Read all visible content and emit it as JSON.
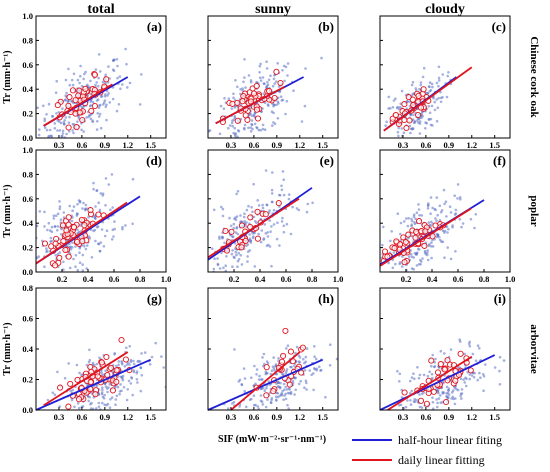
{
  "col_titles": [
    "total",
    "sunny",
    "cloudy"
  ],
  "row_labels": [
    "Chinese cork oak",
    "poplar",
    "arborvitae"
  ],
  "ylabel": "Tr (mm·h⁻¹)",
  "xlabel": "SIF (mW·m⁻²·sr⁻¹·nm⁻¹)",
  "legend": [
    {
      "label": "half-hour  linear fiting",
      "color": "#1f1fd6"
    },
    {
      "label": "daily linear fitting",
      "color": "#e0141e"
    }
  ],
  "colors": {
    "scatter_half_hour": "#5a6fc4",
    "scatter_daily": "#e0141e",
    "fit_half_hour": "#1f1fd6",
    "fit_daily": "#e0141e"
  },
  "chart_data": [
    {
      "type": "scatter",
      "panel": "(a)",
      "row": 0,
      "col": 0,
      "xlim": [
        0,
        1.7
      ],
      "ylim": [
        0,
        1.0
      ],
      "xticks": [
        "0.3",
        "0.6",
        "0.9",
        "1.2",
        "1.5"
      ],
      "yticks": [
        "0.0",
        "0.2",
        "0.4",
        "0.6",
        "0.8",
        "1.0"
      ],
      "half_hour_cloud": {
        "center": [
          0.6,
          0.28
        ],
        "spread": [
          0.28,
          0.14
        ],
        "slope": 0.36,
        "n": 260
      },
      "daily_cloud": {
        "center": [
          0.6,
          0.3
        ],
        "spread": [
          0.18,
          0.07
        ],
        "slope": 0.38,
        "n": 45
      },
      "fit_half_hour": [
        [
          0.1,
          0.1
        ],
        [
          1.2,
          0.5
        ]
      ],
      "fit_daily": [
        [
          0.1,
          0.1
        ],
        [
          1.0,
          0.44
        ]
      ]
    },
    {
      "type": "scatter",
      "panel": "(b)",
      "row": 0,
      "col": 1,
      "xlim": [
        0,
        1.7
      ],
      "ylim": [
        0,
        1.0
      ],
      "xticks": [
        "0.3",
        "0.6",
        "0.9",
        "1.2",
        "1.5"
      ],
      "yticks": [],
      "half_hour_cloud": {
        "center": [
          0.6,
          0.26
        ],
        "spread": [
          0.28,
          0.13
        ],
        "slope": 0.33,
        "n": 250
      },
      "daily_cloud": {
        "center": [
          0.55,
          0.28
        ],
        "spread": [
          0.17,
          0.07
        ],
        "slope": 0.35,
        "n": 45
      },
      "fit_half_hour": [
        [
          0.1,
          0.12
        ],
        [
          1.25,
          0.5
        ]
      ],
      "fit_daily": [
        [
          0.1,
          0.12
        ],
        [
          1.0,
          0.42
        ]
      ]
    },
    {
      "type": "scatter",
      "panel": "(c)",
      "row": 0,
      "col": 2,
      "xlim": [
        0,
        1.7
      ],
      "ylim": [
        0,
        1.0
      ],
      "xticks": [
        "0.3",
        "0.6",
        "0.9",
        "1.2",
        "1.5"
      ],
      "yticks": [],
      "half_hour_cloud": {
        "center": [
          0.45,
          0.24
        ],
        "spread": [
          0.2,
          0.12
        ],
        "slope": 0.4,
        "n": 200
      },
      "daily_cloud": {
        "center": [
          0.4,
          0.24
        ],
        "spread": [
          0.12,
          0.06
        ],
        "slope": 0.45,
        "n": 35
      },
      "fit_half_hour": [
        [
          0.05,
          0.06
        ],
        [
          1.0,
          0.5
        ]
      ],
      "fit_daily": [
        [
          0.05,
          0.06
        ],
        [
          1.2,
          0.58
        ]
      ]
    },
    {
      "type": "scatter",
      "panel": "(d)",
      "row": 1,
      "col": 0,
      "xlim": [
        0,
        1.0
      ],
      "ylim": [
        0,
        1.0
      ],
      "xticks": [
        "0.2",
        "0.4",
        "0.6",
        "0.8",
        "1.0"
      ],
      "yticks": [
        "0.0",
        "0.2",
        "0.4",
        "0.6",
        "0.8",
        "1.0"
      ],
      "half_hour_cloud": {
        "center": [
          0.3,
          0.3
        ],
        "spread": [
          0.17,
          0.16
        ],
        "slope": 0.6,
        "n": 260
      },
      "daily_cloud": {
        "center": [
          0.28,
          0.3
        ],
        "spread": [
          0.12,
          0.07
        ],
        "slope": 0.7,
        "n": 55
      },
      "fit_half_hour": [
        [
          0.0,
          0.07
        ],
        [
          0.8,
          0.62
        ]
      ],
      "fit_daily": [
        [
          0.0,
          0.07
        ],
        [
          0.7,
          0.57
        ]
      ]
    },
    {
      "type": "scatter",
      "panel": "(e)",
      "row": 1,
      "col": 1,
      "xlim": [
        0,
        1.0
      ],
      "ylim": [
        0,
        1.0
      ],
      "xticks": [
        "0.2",
        "0.4",
        "0.6",
        "0.8",
        "1.0"
      ],
      "yticks": [],
      "half_hour_cloud": {
        "center": [
          0.3,
          0.3
        ],
        "spread": [
          0.17,
          0.15
        ],
        "slope": 0.65,
        "n": 240
      },
      "daily_cloud": {
        "center": [
          0.28,
          0.32
        ],
        "spread": [
          0.12,
          0.07
        ],
        "slope": 0.7,
        "n": 25
      },
      "fit_half_hour": [
        [
          0.0,
          0.1
        ],
        [
          0.8,
          0.69
        ]
      ],
      "fit_daily": [
        [
          0.0,
          0.12
        ],
        [
          0.7,
          0.6
        ]
      ]
    },
    {
      "type": "scatter",
      "panel": "(f)",
      "row": 1,
      "col": 2,
      "xlim": [
        0,
        1.0
      ],
      "ylim": [
        0,
        1.0
      ],
      "xticks": [
        "0.2",
        "0.4",
        "0.6",
        "0.8",
        "1.0"
      ],
      "yticks": [],
      "half_hour_cloud": {
        "center": [
          0.28,
          0.26
        ],
        "spread": [
          0.16,
          0.14
        ],
        "slope": 0.55,
        "n": 240
      },
      "daily_cloud": {
        "center": [
          0.25,
          0.26
        ],
        "spread": [
          0.12,
          0.06
        ],
        "slope": 0.6,
        "n": 50
      },
      "fit_half_hour": [
        [
          0.0,
          0.06
        ],
        [
          0.8,
          0.59
        ]
      ],
      "fit_daily": [
        [
          0.0,
          0.05
        ],
        [
          0.7,
          0.52
        ]
      ]
    },
    {
      "type": "scatter",
      "panel": "(g)",
      "row": 2,
      "col": 0,
      "xlim": [
        0,
        1.7
      ],
      "ylim": [
        0,
        0.8
      ],
      "xticks": [
        "0.3",
        "0.6",
        "0.9",
        "1.2",
        "1.5"
      ],
      "yticks": [
        "0.0",
        "0.2",
        "0.4",
        "0.6",
        "0.8"
      ],
      "half_hour_cloud": {
        "center": [
          0.85,
          0.18
        ],
        "spread": [
          0.3,
          0.1
        ],
        "slope": 0.22,
        "n": 280
      },
      "daily_cloud": {
        "center": [
          0.8,
          0.2
        ],
        "spread": [
          0.2,
          0.06
        ],
        "slope": 0.3,
        "n": 55
      },
      "fit_half_hour": [
        [
          0.0,
          0.0
        ],
        [
          1.5,
          0.33
        ]
      ],
      "fit_daily": [
        [
          0.1,
          0.03
        ],
        [
          1.2,
          0.38
        ]
      ]
    },
    {
      "type": "scatter",
      "panel": "(h)",
      "row": 2,
      "col": 1,
      "xlim": [
        0,
        1.7
      ],
      "ylim": [
        0,
        0.8
      ],
      "xticks": [
        "0.3",
        "0.6",
        "0.9",
        "1.2",
        "1.5"
      ],
      "yticks": [],
      "half_hour_cloud": {
        "center": [
          0.9,
          0.18
        ],
        "spread": [
          0.28,
          0.1
        ],
        "slope": 0.25,
        "n": 240
      },
      "daily_cloud": {
        "center": [
          0.95,
          0.24
        ],
        "spread": [
          0.17,
          0.07
        ],
        "slope": 0.45,
        "n": 25
      },
      "fit_half_hour": [
        [
          0.0,
          0.0
        ],
        [
          1.5,
          0.33
        ]
      ],
      "fit_daily": [
        [
          0.3,
          0.0
        ],
        [
          1.2,
          0.38
        ]
      ]
    },
    {
      "type": "scatter",
      "panel": "(i)",
      "row": 2,
      "col": 2,
      "xlim": [
        0,
        1.7
      ],
      "ylim": [
        0,
        0.8
      ],
      "xticks": [
        "0.3",
        "0.6",
        "0.9",
        "1.2",
        "1.5"
      ],
      "yticks": [],
      "half_hour_cloud": {
        "center": [
          0.85,
          0.18
        ],
        "spread": [
          0.3,
          0.1
        ],
        "slope": 0.22,
        "n": 220
      },
      "daily_cloud": {
        "center": [
          0.75,
          0.2
        ],
        "spread": [
          0.18,
          0.06
        ],
        "slope": 0.3,
        "n": 40
      },
      "fit_half_hour": [
        [
          0.0,
          0.0
        ],
        [
          1.5,
          0.36
        ]
      ],
      "fit_daily": [
        [
          0.1,
          0.0
        ],
        [
          1.2,
          0.35
        ]
      ]
    }
  ]
}
